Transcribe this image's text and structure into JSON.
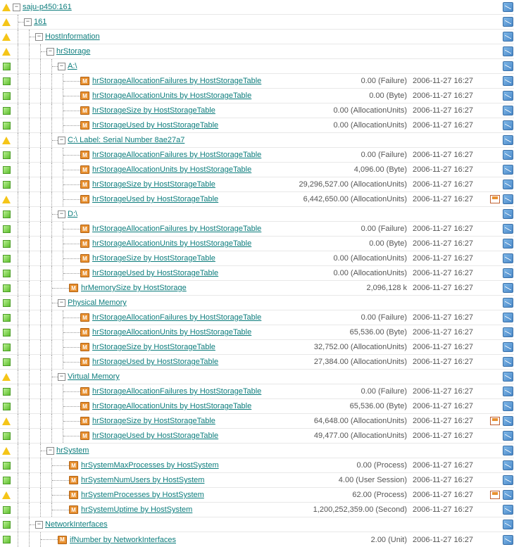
{
  "common": {
    "ts": "2006-11-27 16:27",
    "m_glyph": "M",
    "expand_minus": "−",
    "expand_plus": "+"
  },
  "rows": [
    {
      "status": "yellow",
      "depth": 0,
      "toggle": true,
      "label": "saju-p450:161",
      "metric": false
    },
    {
      "status": "yellow",
      "depth": 1,
      "toggle": true,
      "label": "161",
      "metric": false
    },
    {
      "status": "yellow",
      "depth": 2,
      "toggle": true,
      "label": "HostInformation",
      "metric": false
    },
    {
      "status": "yellow",
      "depth": 3,
      "toggle": true,
      "label": "hrStorage",
      "metric": false
    },
    {
      "status": "green",
      "depth": 4,
      "toggle": true,
      "label": "A:\\",
      "metric": false
    },
    {
      "status": "green",
      "depth": 5,
      "toggle": false,
      "label": "hrStorageAllocationFailures by HostStorageTable",
      "metric": true,
      "value": "0.00 (Failure)",
      "alert": false
    },
    {
      "status": "green",
      "depth": 5,
      "toggle": false,
      "label": "hrStorageAllocationUnits by HostStorageTable",
      "metric": true,
      "value": "0.00 (Byte)",
      "alert": false
    },
    {
      "status": "green",
      "depth": 5,
      "toggle": false,
      "label": "hrStorageSize by HostStorageTable",
      "metric": true,
      "value": "0.00 (AllocationUnits)",
      "alert": false
    },
    {
      "status": "green",
      "depth": 5,
      "toggle": false,
      "label": "hrStorageUsed by HostStorageTable",
      "metric": true,
      "value": "0.00 (AllocationUnits)",
      "alert": false
    },
    {
      "status": "yellow",
      "depth": 4,
      "toggle": true,
      "label": "C:\\ Label: Serial Number 8ae27a7",
      "metric": false
    },
    {
      "status": "green",
      "depth": 5,
      "toggle": false,
      "label": "hrStorageAllocationFailures by HostStorageTable",
      "metric": true,
      "value": "0.00 (Failure)",
      "alert": false
    },
    {
      "status": "green",
      "depth": 5,
      "toggle": false,
      "label": "hrStorageAllocationUnits by HostStorageTable",
      "metric": true,
      "value": "4,096.00 (Byte)",
      "alert": false
    },
    {
      "status": "green",
      "depth": 5,
      "toggle": false,
      "label": "hrStorageSize by HostStorageTable",
      "metric": true,
      "value": "29,296,527.00 (AllocationUnits)",
      "alert": false
    },
    {
      "status": "yellow",
      "depth": 5,
      "toggle": false,
      "label": "hrStorageUsed by HostStorageTable",
      "metric": true,
      "value": "6,442,650.00 (AllocationUnits)",
      "alert": true
    },
    {
      "status": "green",
      "depth": 4,
      "toggle": true,
      "label": "D:\\",
      "metric": false
    },
    {
      "status": "green",
      "depth": 5,
      "toggle": false,
      "label": "hrStorageAllocationFailures by HostStorageTable",
      "metric": true,
      "value": "0.00 (Failure)",
      "alert": false
    },
    {
      "status": "green",
      "depth": 5,
      "toggle": false,
      "label": "hrStorageAllocationUnits by HostStorageTable",
      "metric": true,
      "value": "0.00 (Byte)",
      "alert": false
    },
    {
      "status": "green",
      "depth": 5,
      "toggle": false,
      "label": "hrStorageSize by HostStorageTable",
      "metric": true,
      "value": "0.00 (AllocationUnits)",
      "alert": false
    },
    {
      "status": "green",
      "depth": 5,
      "toggle": false,
      "label": "hrStorageUsed by HostStorageTable",
      "metric": true,
      "value": "0.00 (AllocationUnits)",
      "alert": false
    },
    {
      "status": "green",
      "depth": 4,
      "toggle": false,
      "label": "hrMemorySize by HostStorage",
      "metric": true,
      "value": "2,096,128 k",
      "alert": false
    },
    {
      "status": "green",
      "depth": 4,
      "toggle": true,
      "label": "Physical Memory",
      "metric": false
    },
    {
      "status": "green",
      "depth": 5,
      "toggle": false,
      "label": "hrStorageAllocationFailures by HostStorageTable",
      "metric": true,
      "value": "0.00 (Failure)",
      "alert": false
    },
    {
      "status": "green",
      "depth": 5,
      "toggle": false,
      "label": "hrStorageAllocationUnits by HostStorageTable",
      "metric": true,
      "value": "65,536.00 (Byte)",
      "alert": false
    },
    {
      "status": "green",
      "depth": 5,
      "toggle": false,
      "label": "hrStorageSize by HostStorageTable",
      "metric": true,
      "value": "32,752.00 (AllocationUnits)",
      "alert": false
    },
    {
      "status": "green",
      "depth": 5,
      "toggle": false,
      "label": "hrStorageUsed by HostStorageTable",
      "metric": true,
      "value": "27,384.00 (AllocationUnits)",
      "alert": false
    },
    {
      "status": "yellow",
      "depth": 4,
      "toggle": true,
      "label": "Virtual Memory",
      "metric": false
    },
    {
      "status": "green",
      "depth": 5,
      "toggle": false,
      "label": "hrStorageAllocationFailures by HostStorageTable",
      "metric": true,
      "value": "0.00 (Failure)",
      "alert": false
    },
    {
      "status": "green",
      "depth": 5,
      "toggle": false,
      "label": "hrStorageAllocationUnits by HostStorageTable",
      "metric": true,
      "value": "65,536.00 (Byte)",
      "alert": false
    },
    {
      "status": "yellow",
      "depth": 5,
      "toggle": false,
      "label": "hrStorageSize by HostStorageTable",
      "metric": true,
      "value": "64,648.00 (AllocationUnits)",
      "alert": true
    },
    {
      "status": "green",
      "depth": 5,
      "toggle": false,
      "label": "hrStorageUsed by HostStorageTable",
      "metric": true,
      "value": "49,477.00 (AllocationUnits)",
      "alert": false
    },
    {
      "status": "yellow",
      "depth": 3,
      "toggle": true,
      "label": "hrSystem",
      "metric": false
    },
    {
      "status": "green",
      "depth": 4,
      "toggle": false,
      "label": "hrSystemMaxProcesses by HostSystem",
      "metric": true,
      "value": "0.00 (Process)",
      "alert": false
    },
    {
      "status": "green",
      "depth": 4,
      "toggle": false,
      "label": "hrSystemNumUsers by HostSystem",
      "metric": true,
      "value": "4.00 (User Session)",
      "alert": false
    },
    {
      "status": "yellow",
      "depth": 4,
      "toggle": false,
      "label": "hrSystemProcesses by HostSystem",
      "metric": true,
      "value": "62.00 (Process)",
      "alert": true
    },
    {
      "status": "green",
      "depth": 4,
      "toggle": false,
      "label": "hrSystemUptime by HostSystem",
      "metric": true,
      "value": "1,200,252,359.00 (Second)",
      "alert": false
    },
    {
      "status": "green",
      "depth": 2,
      "toggle": true,
      "label": "NetworkInterfaces",
      "metric": false
    },
    {
      "status": "green",
      "depth": 3,
      "toggle": false,
      "label": "ifNumber by NetworkInterfaces",
      "metric": true,
      "value": "2.00 (Unit)",
      "alert": false
    }
  ]
}
